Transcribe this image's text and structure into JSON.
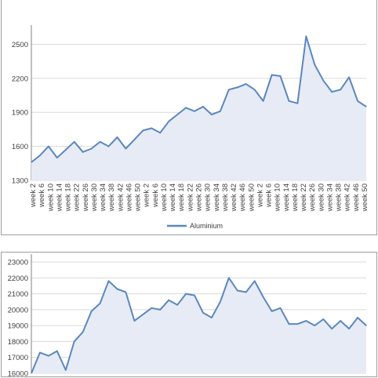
{
  "charts": [
    {
      "type": "area",
      "series_name": "Aluminium",
      "color": "#5b87bd",
      "fill": "#e6ebf5",
      "grid_color": "#d9d9d9",
      "legend": "bottom",
      "ylim": [
        1300,
        2600
      ],
      "yticks": [
        "1300",
        "1600",
        "1900",
        "2200",
        "2500"
      ],
      "xticks": [
        "week 2",
        "week 6",
        "week 10",
        "week 14",
        "week 18",
        "week 22",
        "week 26",
        "week 30",
        "week 34",
        "week 38",
        "week 42",
        "week 46",
        "week 50",
        "week 2",
        "week 6",
        "week 10",
        "week 14",
        "week 18",
        "week 22",
        "week 26",
        "week 30",
        "week 34",
        "week 38",
        "week 42",
        "week 46",
        "week 50",
        "week 2",
        "week 6",
        "week 10",
        "week 14",
        "week 18",
        "week 22",
        "week 26",
        "week 30",
        "week 34",
        "week 38",
        "week 42",
        "week 46",
        "week 50"
      ]
    },
    {
      "type": "area",
      "color": "#5b87bd",
      "fill": "#e6ebf5",
      "grid_color": "#d9d9d9",
      "ylim": [
        16000,
        23000
      ],
      "yticks": [
        "16000",
        "17000",
        "18000",
        "19000",
        "20000",
        "21000",
        "22000",
        "23000"
      ]
    }
  ],
  "chart_data": [
    {
      "type": "area",
      "series": [
        {
          "name": "Aluminium",
          "x": [
            0,
            4,
            8,
            12,
            16,
            20,
            24,
            28,
            32,
            36,
            40,
            44,
            48,
            52,
            56,
            60,
            64,
            68,
            72,
            76,
            80,
            84,
            88,
            92,
            96,
            100,
            104,
            108,
            112,
            116,
            120,
            124,
            128,
            132,
            136,
            140,
            144,
            148,
            152,
            156
          ],
          "values": [
            1460,
            1520,
            1600,
            1500,
            1570,
            1640,
            1550,
            1580,
            1640,
            1600,
            1680,
            1580,
            1660,
            1740,
            1760,
            1720,
            1820,
            1880,
            1940,
            1910,
            1950,
            1880,
            1910,
            2100,
            2120,
            2150,
            2100,
            2000,
            2230,
            2220,
            2000,
            1980,
            2570,
            2320,
            2180,
            2080,
            2100,
            2210,
            2000,
            1950
          ]
        }
      ]
    },
    {
      "type": "area",
      "series": [
        {
          "x": [
            0,
            4,
            8,
            12,
            16,
            20,
            24,
            28,
            32,
            36,
            40,
            44,
            48,
            52,
            56,
            60,
            64,
            68,
            72,
            76,
            80,
            84,
            88,
            92,
            96,
            100,
            104,
            108,
            112,
            116,
            120,
            124,
            128,
            132,
            136,
            140,
            144,
            148,
            152,
            156
          ],
          "values": [
            16000,
            17300,
            17100,
            17400,
            16200,
            18000,
            18600,
            19900,
            20400,
            21800,
            21300,
            21100,
            19300,
            19700,
            20100,
            20000,
            20600,
            20300,
            21000,
            20900,
            19800,
            19500,
            20500,
            22000,
            21200,
            21100,
            21800,
            20800,
            19900,
            20100,
            19100,
            19100,
            19300,
            19000,
            19400,
            18800,
            19300,
            18800,
            19500,
            19000
          ]
        }
      ]
    }
  ]
}
